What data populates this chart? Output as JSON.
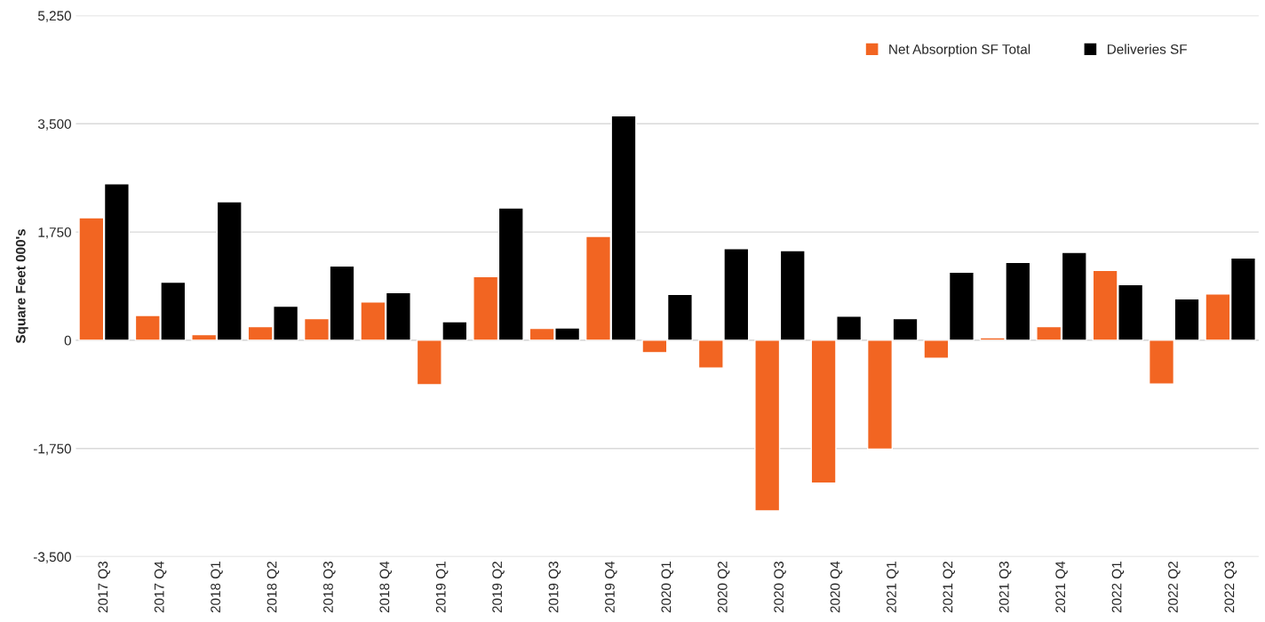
{
  "chart_data": {
    "type": "bar",
    "ylabel": "Square Feet 000's",
    "categories": [
      "2017 Q3",
      "2017 Q4",
      "2018 Q1",
      "2018 Q2",
      "2018 Q3",
      "2018 Q4",
      "2019 Q1",
      "2019 Q2",
      "2019 Q3",
      "2019 Q4",
      "2020 Q1",
      "2020 Q2",
      "2020 Q3",
      "2020 Q4",
      "2021 Q1",
      "2021 Q2",
      "2021 Q3",
      "2021 Q4",
      "2022 Q1",
      "2022 Q2",
      "2022 Q3"
    ],
    "series": [
      {
        "name": "Net Absorption SF Total",
        "color": "#f26522",
        "values": [
          1980,
          400,
          90,
          220,
          350,
          620,
          -720,
          1030,
          190,
          1680,
          -200,
          -450,
          -2760,
          -2310,
          -1760,
          -290,
          40,
          220,
          1130,
          -710,
          750
        ]
      },
      {
        "name": "Deliveries SF",
        "color": "#000000",
        "values": [
          2530,
          940,
          2240,
          550,
          1200,
          770,
          300,
          2140,
          200,
          3630,
          740,
          1480,
          1450,
          390,
          350,
          1100,
          1260,
          1420,
          900,
          670,
          1330
        ]
      }
    ],
    "ylim": [
      -3500,
      5250
    ],
    "yticks": [
      {
        "value": -3500,
        "label": "-3,500"
      },
      {
        "value": -1750,
        "label": "-1,750"
      },
      0,
      {
        "value": 1750,
        "label": "1,750"
      },
      {
        "value": 3500,
        "label": "3,500"
      },
      {
        "value": 5250,
        "label": "5,250"
      }
    ],
    "grid": "y",
    "legend": "top right"
  }
}
